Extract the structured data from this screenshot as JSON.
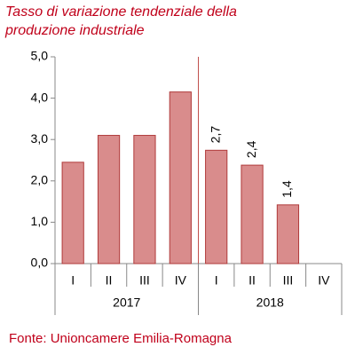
{
  "chart_data": {
    "type": "bar",
    "title": "Tasso di variazione tendenziale della produzione industriale",
    "source": "Fonte: Unioncamere Emilia-Romagna",
    "categories": [
      "I",
      "II",
      "III",
      "IV",
      "I",
      "II",
      "III",
      "IV"
    ],
    "groups": [
      "2017",
      "2018"
    ],
    "values": [
      2.45,
      3.1,
      3.1,
      4.15,
      2.74,
      2.38,
      1.42,
      null
    ],
    "value_labels": [
      null,
      null,
      null,
      null,
      "2,7",
      "2,4",
      "1,4",
      null
    ],
    "color": "#d98c8c",
    "edge_color": "#b03a3a",
    "separator_color": "#c0504d",
    "ylim": [
      0,
      5
    ],
    "yticks": [
      {
        "value": 0,
        "label": "0,0"
      },
      {
        "value": 1,
        "label": "1,0"
      },
      {
        "value": 2,
        "label": "2,0"
      },
      {
        "value": 3,
        "label": "3,0"
      },
      {
        "value": 4,
        "label": "4,0"
      },
      {
        "value": 5,
        "label": "5,0"
      }
    ],
    "grid": false
  }
}
